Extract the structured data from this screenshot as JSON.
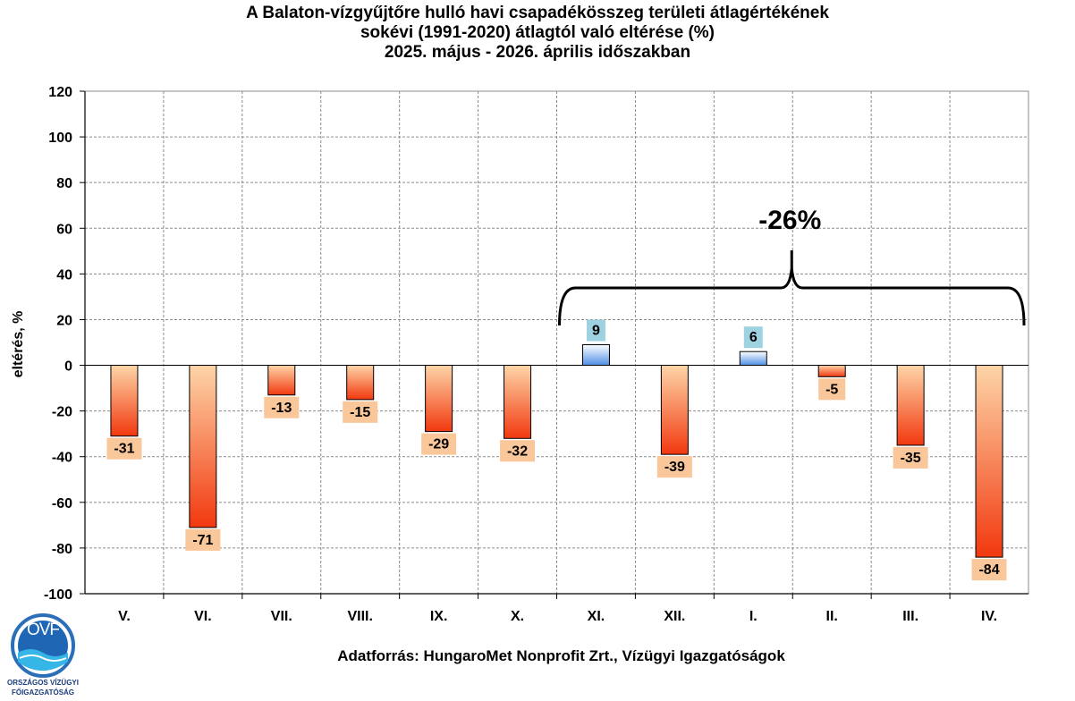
{
  "title": {
    "line1": "A Balaton-vízgyűjtőre hulló havi csapadékösszeg területi átlagértékének",
    "line2": "sokévi (1991-2020) átlagtól való eltérése (%)",
    "line3": "2025. május - 2026. április időszakban"
  },
  "source": "Adatforrás: HungaroMet Nonprofit Zrt., Vízügyi Igazgatóságok",
  "logo": {
    "mark": "OVF",
    "line1": "ORSZÁGOS VÍZÜGYI",
    "line2": "FŐIGAZGATÓSÁG"
  },
  "chart_data": {
    "type": "bar",
    "categories": [
      "V.",
      "VI.",
      "VII.",
      "VIII.",
      "IX.",
      "X.",
      "XI.",
      "XII.",
      "I.",
      "II.",
      "III.",
      "IV."
    ],
    "values": [
      -31,
      -71,
      -13,
      -15,
      -29,
      -32,
      9,
      -39,
      6,
      -5,
      -35,
      -84
    ],
    "ylabel": "eltérés, %",
    "ylim": [
      -100,
      120
    ],
    "yticks": [
      120,
      100,
      80,
      60,
      40,
      20,
      0,
      -20,
      -40,
      -60,
      -80,
      -100
    ],
    "grid": true,
    "annotation": {
      "text": "-26%",
      "brace_from": "XI.",
      "brace_to": "IV."
    },
    "colors": {
      "negative_top": "#fdd5a8",
      "negative_bottom": "#f2380f",
      "positive_top": "#ffffff",
      "positive_bottom": "#4f8fe6",
      "negative_label_bg": "#fac79a",
      "positive_label_bg": "#9fd2e0",
      "grid": "#8c8c8c"
    }
  }
}
